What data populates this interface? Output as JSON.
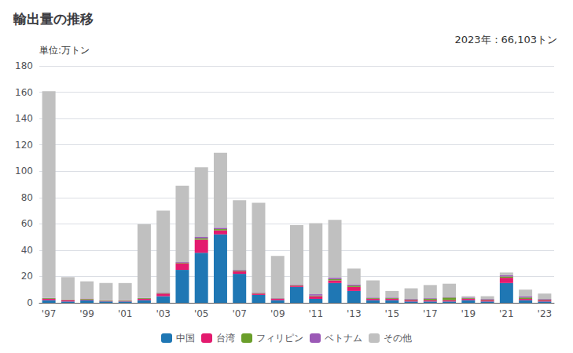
{
  "chart_data": {
    "type": "bar",
    "title": "輸出量の推移",
    "ylabel": "単位:万トン",
    "annotations": [
      "2023年：66,103トン"
    ],
    "categories": [
      "'97",
      null,
      "'99",
      null,
      "'01",
      null,
      "'03",
      null,
      "'05",
      null,
      "'07",
      null,
      "'09",
      null,
      "'11",
      null,
      "'13",
      null,
      "'15",
      null,
      "'17",
      null,
      "'19",
      null,
      "'21",
      null,
      "'23"
    ],
    "series": [
      {
        "name": "中国",
        "color": "#1f77b4",
        "values": [
          2,
          1,
          2,
          1,
          1,
          2,
          5,
          25,
          38,
          52,
          22,
          6,
          2,
          12,
          3,
          15,
          9,
          2,
          2,
          1,
          1,
          1,
          2,
          1,
          15,
          2,
          1
        ]
      },
      {
        "name": "台湾",
        "color": "#e31a6e",
        "values": [
          1,
          1,
          0.5,
          0.5,
          0.5,
          1,
          2,
          5,
          10,
          3,
          2,
          1,
          1,
          1,
          2,
          2,
          3,
          1,
          1,
          1,
          1,
          1,
          1,
          1,
          4,
          1,
          1
        ]
      },
      {
        "name": "フィリピン",
        "color": "#6a9e2a",
        "values": [
          0.5,
          0.3,
          0.5,
          0.3,
          0.3,
          0.5,
          0.5,
          0.5,
          1,
          1,
          0.5,
          0.5,
          0.3,
          0.5,
          0.5,
          1,
          1,
          0.5,
          0.5,
          0.5,
          1,
          2,
          0.5,
          0.5,
          1,
          1,
          0.5
        ]
      },
      {
        "name": "ベトナム",
        "color": "#9b59b6",
        "values": [
          0.3,
          0.2,
          0.3,
          0.2,
          0.2,
          0.3,
          0.5,
          0.5,
          1,
          1,
          0.5,
          0.5,
          0.3,
          0.5,
          1,
          1,
          1,
          0.5,
          0.5,
          0.5,
          0.5,
          0.5,
          0.5,
          0.5,
          1,
          1,
          0.5
        ]
      },
      {
        "name": "その他",
        "color": "#c0c0c0",
        "values": [
          157,
          17,
          13,
          13,
          13,
          56,
          62,
          58,
          53,
          57,
          53,
          68,
          32,
          45,
          54,
          44,
          12,
          13,
          5,
          8,
          10,
          10,
          1,
          2,
          2,
          5,
          4
        ]
      }
    ],
    "stacked": true,
    "ylim": [
      0,
      180
    ],
    "yticks": [
      0,
      20,
      40,
      60,
      80,
      100,
      120,
      140,
      160,
      180
    ],
    "grid": true,
    "legend": "bottom"
  }
}
